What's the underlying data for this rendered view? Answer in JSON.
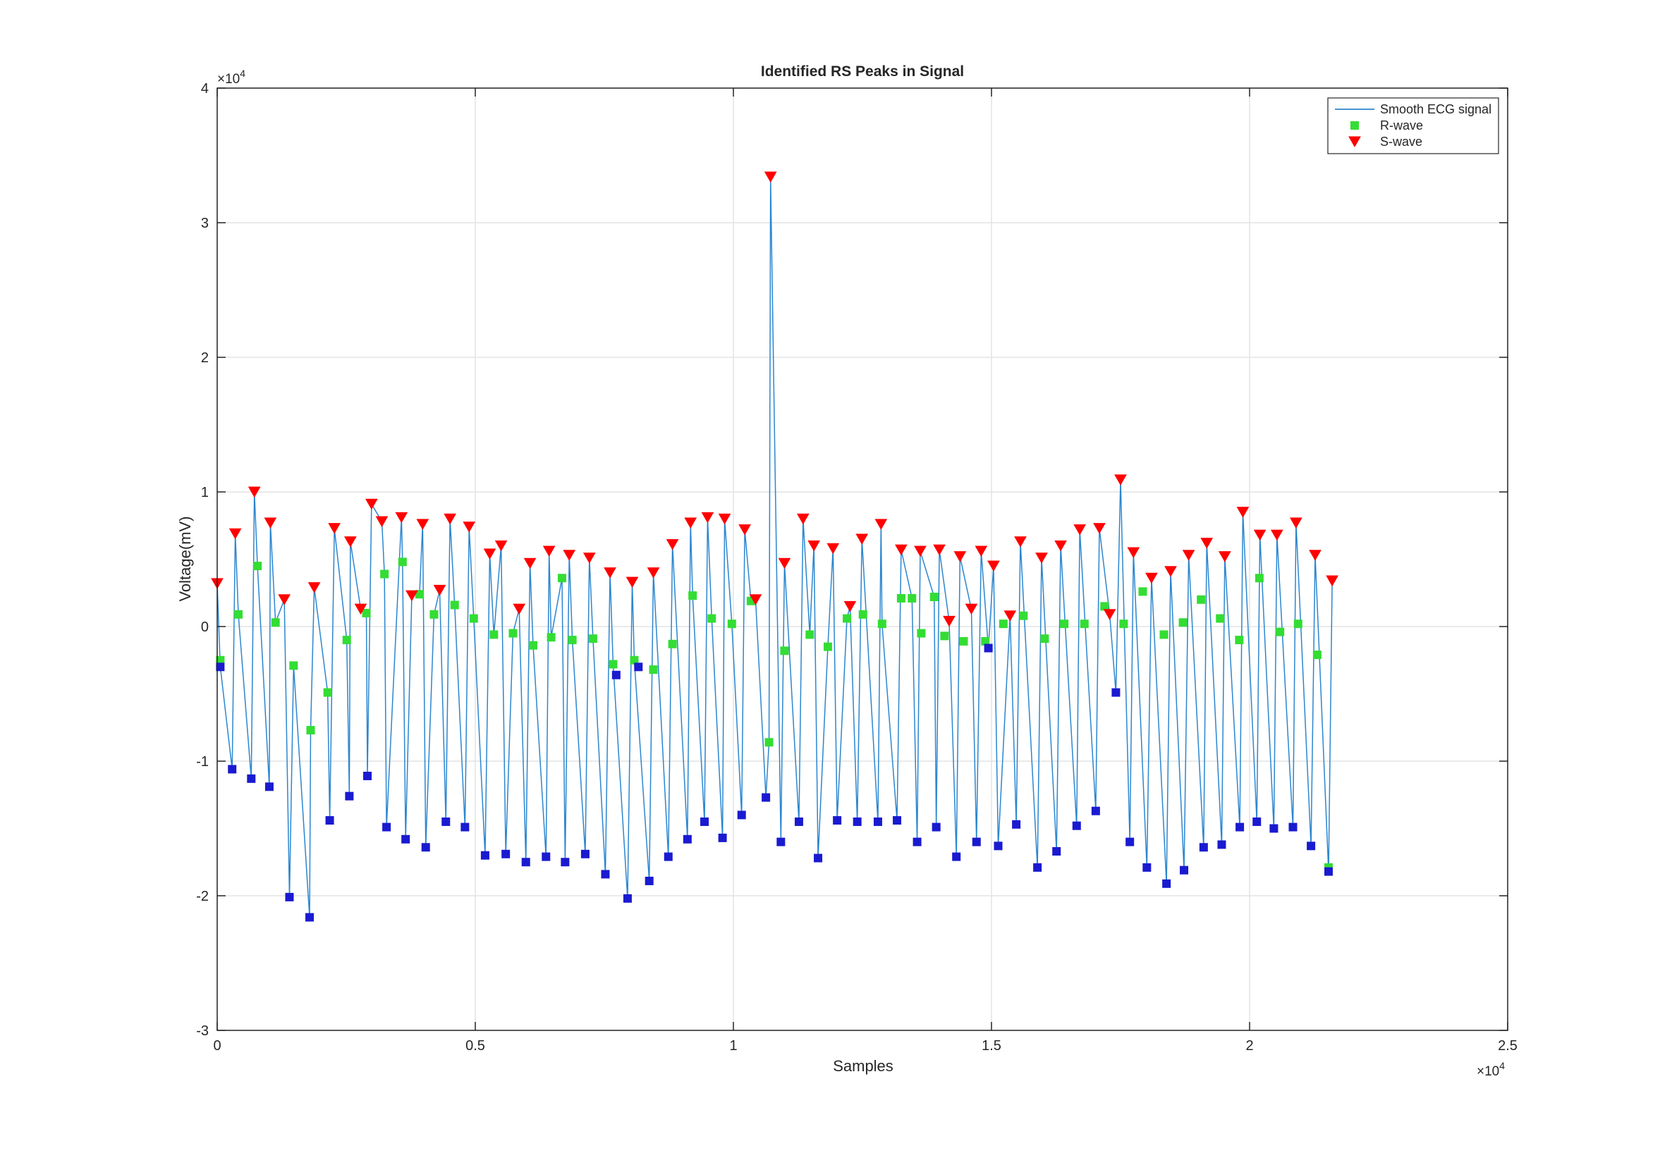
{
  "chart_data": {
    "type": "line",
    "title": "Identified RS Peaks in Signal",
    "xlabel": "Samples",
    "ylabel": "Voltage(mV)",
    "xexponent": {
      "base": "×10",
      "power": "4"
    },
    "yexponent": {
      "base": "×10",
      "power": "4"
    },
    "xlim": [
      0,
      25000
    ],
    "ylim": [
      -30000,
      40000
    ],
    "xticks": [
      0,
      {
        "value": 5000,
        "label": "0.5"
      },
      {
        "value": 10000,
        "label": "1"
      },
      {
        "value": 15000,
        "label": "1.5"
      },
      {
        "value": 20000,
        "label": "2"
      },
      {
        "value": 25000,
        "label": "2.5"
      }
    ],
    "yticks": [
      {
        "value": -30000,
        "label": "-3"
      },
      {
        "value": -20000,
        "label": "-2"
      },
      {
        "value": -10000,
        "label": "-1"
      },
      0,
      {
        "value": 10000,
        "label": "1"
      },
      {
        "value": 20000,
        "label": "2"
      },
      {
        "value": 30000,
        "label": "3"
      },
      {
        "value": 40000,
        "label": "4"
      }
    ],
    "grid": true,
    "legend": "northeast",
    "series": [
      {
        "name": "Smooth ECG signal",
        "color": "#2b86cf",
        "marker": "none",
        "x": [
          0,
          60,
          290,
          350,
          410,
          660,
          720,
          780,
          1010,
          1030,
          1130,
          1300,
          1400,
          1480,
          1790,
          1810,
          1880,
          2140,
          2180,
          2270,
          2510,
          2560,
          2580,
          2780,
          2890,
          2910,
          2990,
          3190,
          3240,
          3280,
          3570,
          3590,
          3650,
          3770,
          3920,
          3980,
          4040,
          4200,
          4310,
          4430,
          4510,
          4600,
          4800,
          4880,
          4970,
          5190,
          5280,
          5360,
          5500,
          5590,
          5730,
          5850,
          5980,
          6060,
          6120,
          6370,
          6430,
          6470,
          6680,
          6740,
          6820,
          6880,
          7130,
          7210,
          7280,
          7520,
          7610,
          7670,
          7950,
          8040,
          8080,
          8370,
          8450,
          8740,
          8820,
          9110,
          9170,
          9210,
          9440,
          9500,
          9580,
          9790,
          9830,
          9970,
          10160,
          10220,
          10340,
          10430,
          10630,
          10690,
          10720,
          10920,
          10990,
          11270,
          11350,
          11480,
          11560,
          11640,
          11830,
          11930,
          12010,
          12200,
          12260,
          12400,
          12490,
          12800,
          12860,
          12880,
          13170,
          13250,
          13460,
          13560,
          13620,
          13890,
          13930,
          13990,
          14180,
          14320,
          14390,
          14610,
          14710,
          14800,
          14940,
          15040,
          15130,
          15360,
          15480,
          15560,
          15890,
          15970,
          16260,
          16340,
          16650,
          16710,
          17020,
          17090,
          17290,
          17410,
          17500,
          17680,
          17750,
          18010,
          18100,
          18390,
          18470,
          18730,
          18820,
          19110,
          19170,
          19460,
          19520,
          19810,
          19870,
          20140,
          20200,
          20470,
          20530,
          20840,
          20900,
          21190,
          21270,
          21530,
          21600
        ],
        "values": [
          3200,
          -3000,
          -10600,
          6900,
          900,
          -11300,
          10000,
          4500,
          -11900,
          7700,
          300,
          2000,
          -20100,
          -2900,
          -21600,
          -7700,
          2900,
          -4900,
          -14400,
          7300,
          -1000,
          -12600,
          6300,
          1300,
          1000,
          -11100,
          9100,
          7800,
          3900,
          -14900,
          8100,
          4800,
          -15800,
          2300,
          2400,
          7600,
          -16400,
          900,
          2700,
          -14500,
          8000,
          1600,
          -14900,
          7400,
          600,
          -17000,
          5400,
          -600,
          6000,
          -16900,
          -500,
          1300,
          -17500,
          4700,
          -1400,
          -17100,
          5600,
          -800,
          3600,
          -17500,
          5300,
          -1000,
          -16900,
          5100,
          -900,
          -18400,
          4000,
          -2800,
          -20200,
          3300,
          -2500,
          -18900,
          4000,
          -17100,
          6100,
          -15800,
          7700,
          2300,
          -14500,
          8100,
          600,
          -15700,
          8000,
          200,
          -14000,
          7200,
          1900,
          2000,
          -12700,
          -8600,
          33400,
          -16000,
          4700,
          -14500,
          8000,
          -600,
          6000,
          -17200,
          -1500,
          5800,
          -14400,
          600,
          1500,
          -14500,
          6500,
          -14500,
          7600,
          200,
          -14400,
          5700,
          2100,
          -16000,
          5600,
          2200,
          -14900,
          5700,
          400,
          -17100,
          5200,
          1300,
          -16000,
          5600,
          -1600,
          4500,
          -16300,
          800,
          -14700,
          6300,
          -17900,
          5100,
          -16700,
          6000,
          -14800,
          7200,
          -13700,
          7300,
          900,
          -4900,
          10900,
          -16000,
          5500,
          -17900,
          3600,
          -19100,
          4100,
          -18100,
          5300,
          -16400,
          6200,
          -16200,
          5200,
          -14900,
          8500,
          -14500,
          6800,
          -15000,
          6800,
          -14900,
          7700,
          -16300,
          5300,
          -18200,
          3400
        ]
      },
      {
        "name": "R-wave",
        "color": "#33dd33",
        "marker": "square",
        "x": [
          60,
          410,
          780,
          1130,
          1480,
          1810,
          2140,
          2510,
          2890,
          3240,
          3590,
          3920,
          4200,
          4600,
          4970,
          5360,
          5730,
          6120,
          6470,
          6680,
          6880,
          7280,
          7670,
          8080,
          8450,
          8820,
          9210,
          9580,
          9970,
          10340,
          10690,
          10990,
          11480,
          11830,
          12200,
          12510,
          12880,
          13250,
          13460,
          13640,
          13890,
          14090,
          14460,
          14880,
          15230,
          15620,
          16030,
          16410,
          16800,
          17190,
          17560,
          17930,
          18340,
          18710,
          19060,
          19430,
          19800,
          20190,
          20590,
          20940,
          21310,
          21530
        ],
        "values": [
          -2500,
          900,
          4500,
          300,
          -2900,
          -7700,
          -4900,
          -1000,
          1000,
          3900,
          4800,
          2400,
          900,
          1600,
          600,
          -600,
          -500,
          -1400,
          -800,
          3600,
          -1000,
          -900,
          -2800,
          -2500,
          -3200,
          -1300,
          2300,
          600,
          200,
          1900,
          -8600,
          -1800,
          -600,
          -1500,
          600,
          900,
          200,
          2100,
          2100,
          -500,
          2200,
          -700,
          -1100,
          -1100,
          200,
          800,
          -900,
          200,
          200,
          1500,
          200,
          2600,
          -600,
          300,
          2000,
          600,
          -1000,
          3600,
          -400,
          200,
          -2100,
          -17900
        ]
      },
      {
        "name": "S-wave",
        "color": "#ff0000",
        "marker": "triangle-down",
        "x": [
          0,
          350,
          720,
          1030,
          1300,
          1880,
          2270,
          2580,
          2780,
          2990,
          3190,
          3570,
          3770,
          3980,
          4310,
          4510,
          4880,
          5280,
          5500,
          5850,
          6060,
          6430,
          6820,
          7210,
          7610,
          8040,
          8450,
          8820,
          9170,
          9500,
          9830,
          10220,
          10430,
          10720,
          10990,
          11350,
          11560,
          11930,
          12260,
          12490,
          12860,
          13250,
          13620,
          13990,
          14180,
          14390,
          14610,
          14800,
          15040,
          15360,
          15560,
          15970,
          16340,
          16710,
          17090,
          17290,
          17500,
          17750,
          18100,
          18470,
          18820,
          19170,
          19520,
          19870,
          20200,
          20530,
          20900,
          21270,
          21600
        ],
        "values": [
          3200,
          6900,
          10000,
          7700,
          2000,
          2900,
          7300,
          6300,
          1300,
          9100,
          7800,
          8100,
          2300,
          7600,
          2700,
          8000,
          7400,
          5400,
          6000,
          1300,
          4700,
          5600,
          5300,
          5100,
          4000,
          3300,
          4000,
          6100,
          7700,
          8100,
          8000,
          7200,
          2000,
          33400,
          4700,
          8000,
          6000,
          5800,
          1500,
          6500,
          7600,
          5700,
          5600,
          5700,
          400,
          5200,
          1300,
          5600,
          4500,
          800,
          6300,
          5100,
          6000,
          7200,
          7300,
          900,
          10900,
          5500,
          3600,
          4100,
          5300,
          6200,
          5200,
          8500,
          6800,
          6800,
          7700,
          5300,
          3400
        ]
      },
      {
        "color": "#1a1ad0",
        "marker": "square",
        "x": [
          60,
          290,
          660,
          1010,
          1400,
          1790,
          2180,
          2560,
          2910,
          3280,
          3650,
          4040,
          4430,
          4800,
          5190,
          5590,
          5980,
          6370,
          6740,
          7130,
          7520,
          7730,
          7950,
          8160,
          8370,
          8740,
          9110,
          9440,
          9790,
          10160,
          10630,
          10920,
          11270,
          11640,
          12010,
          12400,
          12800,
          13170,
          13560,
          13930,
          14320,
          14710,
          14940,
          15130,
          15480,
          15890,
          16260,
          16650,
          17020,
          17410,
          17680,
          18010,
          18390,
          18730,
          19110,
          19460,
          19810,
          20140,
          20470,
          20840,
          21190,
          21530
        ],
        "values": [
          -3000,
          -10600,
          -11300,
          -11900,
          -20100,
          -21600,
          -14400,
          -12600,
          -11100,
          -14900,
          -15800,
          -16400,
          -14500,
          -14900,
          -17000,
          -16900,
          -17500,
          -17100,
          -17500,
          -16900,
          -18400,
          -3600,
          -20200,
          -3000,
          -18900,
          -17100,
          -15800,
          -14500,
          -15700,
          -14000,
          -12700,
          -16000,
          -14500,
          -17200,
          -14400,
          -14500,
          -14500,
          -14400,
          -16000,
          -14900,
          -17100,
          -16000,
          -1600,
          -16300,
          -14700,
          -17900,
          -16700,
          -14800,
          -13700,
          -4900,
          -16000,
          -17900,
          -19100,
          -18100,
          -16400,
          -16200,
          -14900,
          -14500,
          -15000,
          -14900,
          -16300,
          -18200
        ]
      }
    ]
  }
}
